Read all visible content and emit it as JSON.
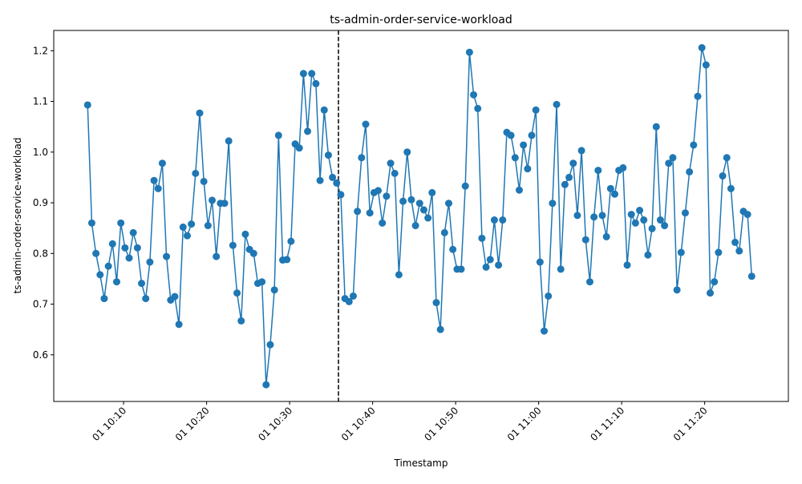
{
  "chart_data": {
    "type": "line",
    "title": "ts-admin-order-service-workload",
    "xlabel": "Timestamp",
    "ylabel": "ts-admin-order-service-workload",
    "x_type": "time",
    "x_start": "2024-01-01T10:05:40",
    "x_interval_seconds": 30,
    "xlim": [
      "2024-01-01T10:01:35",
      "2024-01-01T11:30:05"
    ],
    "ylim": [
      0.508,
      1.24
    ],
    "x_ticks": [
      "2024-01-01T10:10:00",
      "2024-01-01T10:20:00",
      "2024-01-01T10:30:00",
      "2024-01-01T10:40:00",
      "2024-01-01T10:50:00",
      "2024-01-01T11:00:00",
      "2024-01-01T11:10:00",
      "2024-01-01T11:20:00"
    ],
    "x_tick_labels": [
      "01 10:10",
      "01 10:20",
      "01 10:30",
      "01 10:40",
      "01 10:50",
      "01 11:00",
      "01 11:10",
      "01 11:20"
    ],
    "y_ticks": [
      0.6,
      0.7,
      0.8,
      0.9,
      1.0,
      1.1,
      1.2
    ],
    "y_tick_labels": [
      "0.6",
      "0.7",
      "0.8",
      "0.9",
      "1.0",
      "1.1",
      "1.2"
    ],
    "vline_x": "2024-01-01T10:35:53",
    "grid": false,
    "legend": "none",
    "line_color": "#1f77b4",
    "marker": "circle",
    "vline_color": "#000000",
    "series": [
      {
        "values": [
          1.093,
          0.86,
          0.8,
          0.758,
          0.711,
          0.775,
          0.819,
          0.744,
          0.86,
          0.811,
          0.791,
          0.841,
          0.811,
          0.741,
          0.711,
          0.783,
          0.944,
          0.928,
          0.978,
          0.794,
          0.708,
          0.715,
          0.66,
          0.852,
          0.835,
          0.858,
          0.958,
          1.077,
          0.942,
          0.855,
          0.905,
          0.794,
          0.899,
          0.899,
          1.022,
          0.816,
          0.722,
          0.667,
          0.838,
          0.808,
          0.8,
          0.741,
          0.744,
          0.541,
          0.62,
          0.728,
          1.033,
          0.787,
          0.788,
          0.824,
          1.016,
          1.008,
          1.155,
          1.041,
          1.155,
          1.135,
          0.944,
          1.083,
          0.994,
          0.95,
          0.939,
          0.916,
          0.711,
          0.705,
          0.716,
          0.883,
          0.989,
          1.055,
          0.88,
          0.92,
          0.924,
          0.86,
          0.913,
          0.978,
          0.958,
          0.758,
          0.903,
          1.0,
          0.906,
          0.855,
          0.899,
          0.886,
          0.87,
          0.92,
          0.703,
          0.65,
          0.841,
          0.899,
          0.808,
          0.769,
          0.769,
          0.933,
          1.197,
          1.113,
          1.086,
          0.83,
          0.773,
          0.788,
          0.866,
          0.777,
          0.866,
          1.039,
          1.033,
          0.989,
          0.925,
          1.014,
          0.967,
          1.033,
          1.083,
          0.783,
          0.647,
          0.716,
          0.899,
          1.094,
          0.769,
          0.936,
          0.95,
          0.978,
          0.875,
          1.003,
          0.827,
          0.744,
          0.872,
          0.964,
          0.875,
          0.833,
          0.928,
          0.917,
          0.964,
          0.969,
          0.777,
          0.877,
          0.86,
          0.885,
          0.866,
          0.797,
          0.849,
          1.05,
          0.866,
          0.855,
          0.978,
          0.989,
          0.728,
          0.802,
          0.88,
          0.961,
          1.014,
          1.11,
          1.206,
          1.172,
          0.722,
          0.744,
          0.802,
          0.953,
          0.989,
          0.928,
          0.822,
          0.805,
          0.883,
          0.877,
          0.755
        ]
      }
    ]
  }
}
